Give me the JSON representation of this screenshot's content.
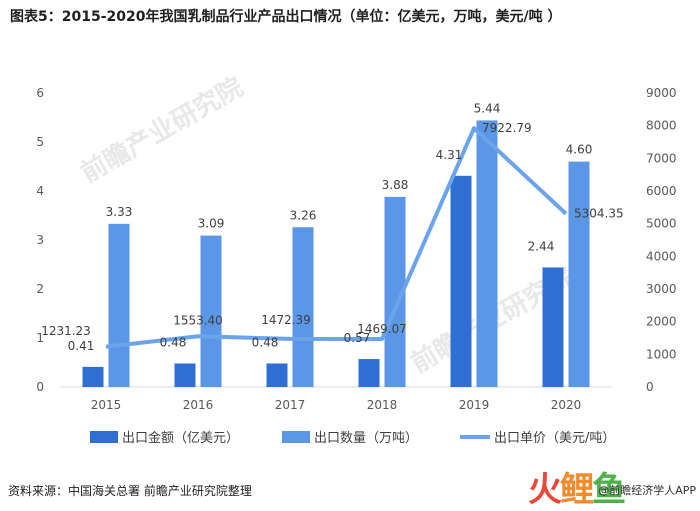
{
  "title": "图表5：2015-2020年我国乳制品行业产品出口情况（单位：亿美元，万吨，美元/吨 ）",
  "source": "资料来源：中国海关总署 前瞻产业研究院整理",
  "watermark": "前瞻产业研究院",
  "brand": {
    "logo": "火鲤鱼",
    "text": "@前瞻经济学人APP"
  },
  "colors": {
    "amount": "#2f6fd3",
    "quantity": "#5b97e6",
    "price": "#6aa4eb"
  },
  "chart_data": {
    "type": "bar",
    "categories": [
      "2015",
      "2016",
      "2017",
      "2018",
      "2019",
      "2020"
    ],
    "series": [
      {
        "name": "出口金额（亿美元）",
        "type": "bar",
        "axis": "left",
        "values": [
          0.41,
          0.48,
          0.48,
          0.57,
          4.31,
          2.44
        ]
      },
      {
        "name": "出口数量（万吨）",
        "type": "bar",
        "axis": "left",
        "values": [
          3.33,
          3.09,
          3.26,
          3.88,
          5.44,
          4.6
        ]
      },
      {
        "name": "出口单价（美元/吨）",
        "type": "line",
        "axis": "right",
        "values": [
          1231.23,
          1553.4,
          1472.39,
          1469.07,
          7922.79,
          5304.35
        ]
      }
    ],
    "data_labels": {
      "amount": [
        "0.41",
        "0.48",
        "0.48",
        "0.57",
        "4.31",
        "2.44"
      ],
      "quantity": [
        "3.33",
        "3.09",
        "3.26",
        "3.88",
        "5.44",
        "4.60"
      ],
      "price": [
        "1231.23",
        "1553.40",
        "1472.39",
        "1469.07",
        "7922.79",
        "5304.35"
      ]
    },
    "y_left": {
      "min": 0,
      "max": 6,
      "ticks": [
        "0",
        "1",
        "2",
        "3",
        "4",
        "5",
        "6"
      ]
    },
    "y_right": {
      "min": 0,
      "max": 9000,
      "ticks": [
        "0",
        "1000",
        "2000",
        "3000",
        "4000",
        "5000",
        "6000",
        "7000",
        "8000",
        "9000"
      ]
    },
    "legend_position": "bottom",
    "grid": false
  }
}
